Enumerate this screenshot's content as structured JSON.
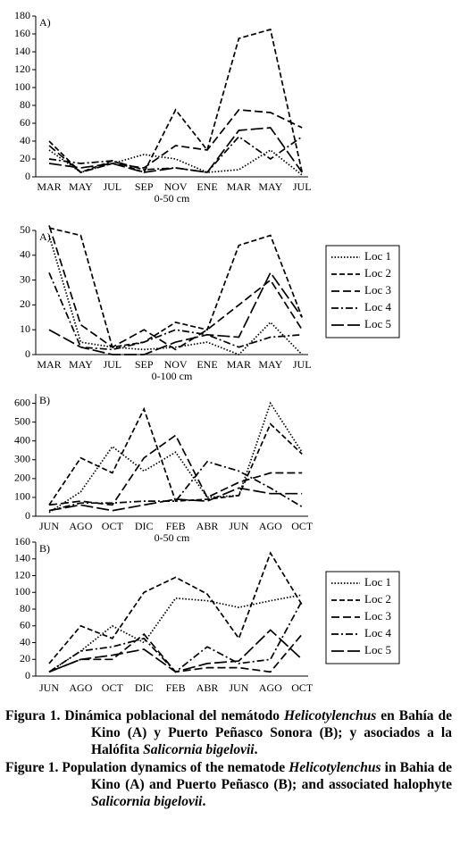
{
  "chart_data": [
    {
      "type": "line",
      "panel_label": "A)",
      "xlabel": "0-50 cm",
      "categories": [
        "MAR",
        "MAY",
        "JUL",
        "SEP",
        "NOV",
        "ENE",
        "MAR",
        "MAY",
        "JUL"
      ],
      "ylim": [
        0,
        180
      ],
      "yticks": [
        0,
        20,
        40,
        60,
        80,
        100,
        120,
        140,
        160,
        180
      ],
      "series": [
        {
          "color": "#000000",
          "dash": "1.5,2",
          "values": [
            30,
            5,
            15,
            25,
            20,
            5,
            8,
            30,
            2
          ]
        },
        {
          "color": "#000000",
          "dash": "6,3",
          "values": [
            40,
            5,
            18,
            5,
            75,
            30,
            155,
            165,
            5
          ]
        },
        {
          "color": "#000000",
          "dash": "9,4",
          "values": [
            35,
            5,
            15,
            10,
            35,
            30,
            75,
            72,
            55
          ]
        },
        {
          "color": "#000000",
          "dash": "8,3,2,3",
          "values": [
            20,
            15,
            18,
            8,
            10,
            5,
            45,
            20,
            45
          ]
        },
        {
          "color": "#000000",
          "dash": "14,4",
          "values": [
            15,
            10,
            15,
            5,
            10,
            5,
            52,
            55,
            5
          ]
        }
      ]
    },
    {
      "type": "line",
      "panel_label": "A)",
      "xlabel": "0-100 cm",
      "legend": "right",
      "categories": [
        "MAR",
        "MAY",
        "JUL",
        "SEP",
        "NOV",
        "ENE",
        "MAR",
        "MAY",
        "JUL"
      ],
      "ylim": [
        0,
        50
      ],
      "yticks": [
        0,
        10,
        20,
        30,
        40,
        50
      ],
      "series": [
        {
          "name": "Loc 1",
          "color": "#000000",
          "dash": "1.5,2",
          "values": [
            48,
            5,
            3,
            2,
            3,
            5,
            0,
            13,
            0
          ]
        },
        {
          "name": "Loc 2",
          "color": "#000000",
          "dash": "6,3",
          "values": [
            51,
            48,
            3,
            5,
            13,
            10,
            44,
            48,
            15
          ]
        },
        {
          "name": "Loc 3",
          "color": "#000000",
          "dash": "9,4",
          "values": [
            52,
            12,
            3,
            10,
            2,
            10,
            20,
            30,
            10
          ]
        },
        {
          "name": "Loc 4",
          "color": "#000000",
          "dash": "8,3,2,3",
          "values": [
            33,
            3,
            2,
            5,
            10,
            8,
            3,
            7,
            8
          ]
        },
        {
          "name": "Loc 5",
          "color": "#000000",
          "dash": "14,4",
          "values": [
            10,
            3,
            0,
            0,
            5,
            8,
            7,
            33,
            15
          ]
        }
      ]
    },
    {
      "type": "line",
      "panel_label": "B)",
      "xlabel": "0-50 cm",
      "categories": [
        "JUN",
        "AGO",
        "OCT",
        "DIC",
        "FEB",
        "ABR",
        "JUN",
        "AGO",
        "OCT"
      ],
      "ylim": [
        0,
        650
      ],
      "yticks": [
        0,
        100,
        200,
        300,
        400,
        500,
        600
      ],
      "series": [
        {
          "color": "#000000",
          "dash": "1.5,2",
          "values": [
            20,
            130,
            370,
            240,
            340,
            100,
            110,
            600,
            340
          ]
        },
        {
          "color": "#000000",
          "dash": "6,3",
          "values": [
            60,
            310,
            230,
            570,
            80,
            90,
            110,
            490,
            330
          ]
        },
        {
          "color": "#000000",
          "dash": "9,4",
          "values": [
            60,
            80,
            60,
            310,
            430,
            100,
            180,
            230,
            230
          ]
        },
        {
          "color": "#000000",
          "dash": "8,3,2,3",
          "values": [
            30,
            70,
            70,
            80,
            80,
            290,
            240,
            150,
            50
          ]
        },
        {
          "color": "#000000",
          "dash": "14,4",
          "values": [
            30,
            60,
            30,
            60,
            90,
            80,
            150,
            120,
            120
          ]
        }
      ]
    },
    {
      "type": "line",
      "panel_label": "B)",
      "legend": "right",
      "categories": [
        "JUN",
        "AGO",
        "OCT",
        "DIC",
        "FEB",
        "ABR",
        "JUN",
        "AGO",
        "OCT"
      ],
      "ylim": [
        0,
        160
      ],
      "yticks": [
        0,
        20,
        40,
        60,
        80,
        100,
        120,
        140,
        160
      ],
      "series": [
        {
          "name": "Loc 1",
          "color": "#000000",
          "dash": "1.5,2",
          "values": [
            5,
            30,
            60,
            40,
            93,
            90,
            82,
            90,
            97
          ]
        },
        {
          "name": "Loc 2",
          "color": "#000000",
          "dash": "6,3",
          "values": [
            15,
            60,
            45,
            100,
            118,
            98,
            45,
            147,
            85
          ]
        },
        {
          "name": "Loc 3",
          "color": "#000000",
          "dash": "9,4",
          "values": [
            5,
            20,
            20,
            50,
            5,
            10,
            10,
            5,
            50
          ]
        },
        {
          "name": "Loc 4",
          "color": "#000000",
          "dash": "8,3,2,3",
          "values": [
            5,
            30,
            35,
            45,
            5,
            35,
            15,
            20,
            90
          ]
        },
        {
          "name": "Loc 5",
          "color": "#000000",
          "dash": "14,4",
          "values": [
            5,
            20,
            25,
            32,
            5,
            15,
            18,
            55,
            20
          ]
        }
      ]
    }
  ],
  "caption": {
    "es": [
      [
        "Figura 1. Dinámica poblacional del nemátodo ",
        false
      ],
      [
        "Helicotylenchus",
        true
      ],
      [
        " en Bahía de Kino (A) y Puerto Peñasco Sonora (B); y asociados a la Halófita ",
        false
      ],
      [
        "Salicornia bigelovii",
        true
      ],
      [
        ".",
        false
      ]
    ],
    "en": [
      [
        "Figure 1. Population dynamics of the nematode ",
        false
      ],
      [
        "Helicotylenchus",
        true
      ],
      [
        " in Bahia de Kino (A) and Puerto Peñasco (B); and associated halophyte ",
        false
      ],
      [
        "Salicornia bigelovii",
        true
      ],
      [
        ".",
        false
      ]
    ]
  }
}
